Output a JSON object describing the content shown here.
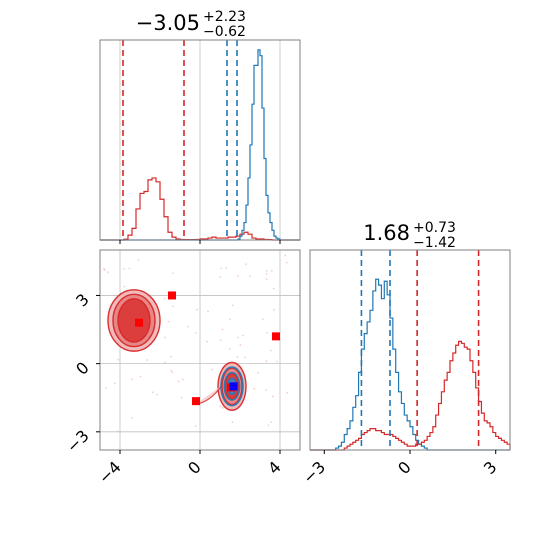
{
  "colors": {
    "red": "#d62728",
    "blue": "#1f77b4",
    "marker_red": "#ff0000",
    "marker_blue": "#0000ff",
    "grid": "#c0c0c0"
  },
  "chart_data": [
    {
      "type": "histogram",
      "panel": "top-left",
      "title": {
        "value": "−3.05",
        "plus": "+2.23",
        "minus": "−0.62"
      },
      "xlim": [
        -5,
        5
      ],
      "xgrid": [
        -4,
        0,
        4
      ],
      "vlines": {
        "red": [
          -3.85,
          -0.8
        ],
        "blue": [
          1.35,
          1.85
        ]
      },
      "series": [
        {
          "color": "red",
          "bin_start": -5,
          "bin_width": 0.2,
          "counts": [
            0,
            0,
            0,
            0,
            0,
            0,
            0.4,
            2.5,
            6,
            16,
            24,
            25,
            31,
            32,
            30,
            21,
            12,
            4,
            1.5,
            0.5,
            0.3,
            0.2,
            0.2,
            0.2,
            0.3,
            0.5,
            0.5,
            1,
            1.5,
            1,
            1,
            1,
            1.5,
            1.5,
            2,
            3,
            4,
            3,
            1,
            0.5,
            0.5,
            0.3,
            0.2,
            0,
            0,
            0,
            0,
            0,
            0,
            0
          ],
          "ymax": 100
        },
        {
          "color": "blue",
          "bin_start": -5,
          "bin_width": 0.1,
          "counts": [
            0,
            0,
            0,
            0,
            0,
            0,
            0,
            0,
            0,
            0,
            0,
            0,
            0,
            0,
            0,
            0,
            0,
            0,
            0,
            0,
            0,
            0,
            0,
            0,
            0,
            0,
            0,
            0,
            0,
            0,
            0,
            0,
            0,
            0,
            0,
            0,
            0,
            0,
            0,
            0,
            0,
            0,
            0,
            0,
            0,
            0,
            0,
            0,
            0,
            0,
            0,
            0,
            0,
            0,
            0,
            0,
            0,
            0,
            0,
            0,
            0,
            0,
            0,
            0,
            0,
            0,
            0,
            0,
            0,
            0.5,
            2,
            5,
            9,
            18,
            32,
            49,
            70,
            90,
            90,
            98,
            95,
            68,
            42,
            23,
            14,
            9,
            5,
            2,
            1,
            0.5,
            0,
            0,
            0,
            0,
            0,
            0,
            0,
            0,
            0,
            0
          ],
          "ymax": 100
        }
      ]
    },
    {
      "type": "histogram",
      "panel": "bottom-right",
      "title": {
        "value": "1.68",
        "plus": "+0.73",
        "minus": "−1.42"
      },
      "xlim": [
        -3.5,
        3.5
      ],
      "xticks": [
        "−3",
        "0",
        "3"
      ],
      "xtick_values": [
        -3,
        0,
        3
      ],
      "vlines": {
        "blue": [
          -1.7,
          -0.7
        ],
        "red": [
          0.25,
          2.4
        ]
      },
      "series": [
        {
          "color": "blue",
          "bin_start": -3.5,
          "bin_width": 0.1,
          "counts": [
            0,
            0,
            0,
            0,
            0,
            0,
            0,
            0,
            0,
            1,
            2,
            4,
            8,
            11,
            15,
            22,
            28,
            40,
            52,
            60,
            66,
            72,
            82,
            88,
            85,
            78,
            87,
            80,
            68,
            52,
            40,
            30,
            24,
            18,
            15,
            12,
            8,
            5,
            3,
            2,
            1,
            0,
            0,
            0,
            0,
            0,
            0,
            0,
            0,
            0,
            0,
            0,
            0,
            0,
            0,
            0,
            0,
            0,
            0,
            0,
            0,
            0,
            0,
            0,
            0,
            0,
            0,
            0,
            0,
            0
          ],
          "ymax": 100
        },
        {
          "color": "red",
          "bin_start": -3.5,
          "bin_width": 0.1,
          "counts": [
            0,
            0,
            0,
            0,
            0,
            0,
            0,
            0,
            0,
            0,
            0,
            0,
            1,
            2,
            3,
            4,
            5,
            6,
            8,
            9,
            10,
            11,
            11,
            10,
            10,
            9,
            8,
            8,
            8,
            7,
            6,
            5,
            4,
            3,
            2,
            2,
            2,
            3,
            3,
            4,
            5,
            7,
            9,
            12,
            18,
            24,
            30,
            36,
            40,
            46,
            50,
            54,
            56,
            55,
            53,
            52,
            46,
            40,
            32,
            25,
            19,
            15,
            14,
            12,
            9,
            7,
            6,
            5,
            4,
            3
          ],
          "ymax": 100
        }
      ]
    },
    {
      "type": "contour",
      "panel": "bottom-left",
      "xlim": [
        -5,
        5
      ],
      "ylim": [
        -3.8,
        5
      ],
      "xticks": [
        "−4",
        "0",
        "4"
      ],
      "xtick_values": [
        -4,
        0,
        4
      ],
      "yticks": [
        "3",
        "0",
        "−3"
      ],
      "ytick_values": [
        3,
        0,
        -3
      ],
      "red_contours": [
        {
          "cx": -3.3,
          "cy": 1.9,
          "rx": [
            1.3,
            1.05,
            0.8
          ],
          "ry": [
            1.35,
            1.15,
            0.95
          ]
        },
        {
          "cx": 1.6,
          "cy": -1.0,
          "rx": [
            0.7,
            0.5,
            0.32
          ],
          "ry": [
            1.05,
            0.8,
            0.55
          ]
        }
      ],
      "red_tail": {
        "from": [
          -0.2,
          -1.6
        ],
        "to": [
          1.1,
          -0.95
        ]
      },
      "blue_contour": {
        "cx": 1.6,
        "cy": -1.0,
        "rx": [
          0.55,
          0.38,
          0.22
        ],
        "ry": [
          0.85,
          0.6,
          0.35
        ]
      },
      "red_markers": [
        {
          "x": -3.05,
          "y": 1.8
        },
        {
          "x": -1.4,
          "y": 3.0
        },
        {
          "x": -0.2,
          "y": -1.65
        },
        {
          "x": 3.8,
          "y": 1.2
        },
        {
          "x": 1.55,
          "y": -1.05
        }
      ],
      "blue_marker": {
        "x": 1.68,
        "y": -1.0
      }
    }
  ]
}
